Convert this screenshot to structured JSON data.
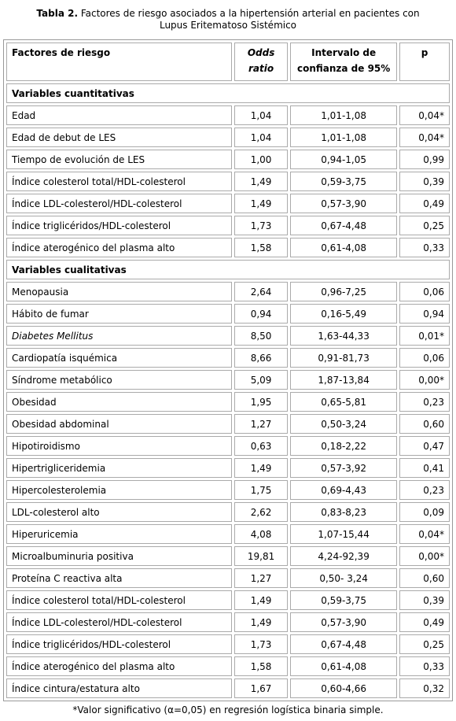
{
  "title": {
    "label": "Tabla 2.",
    "text": "Factores de riesgo asociados a la hipertensión arterial en pacientes con Lupus Eritematoso Sistémico"
  },
  "header": [
    "Factores de riesgo",
    "Odds ratio",
    "Intervalo de confianza de 95%",
    "p"
  ],
  "sections": [
    {
      "title": "Variables cuantitativas",
      "rows": [
        [
          "Edad",
          "1,04",
          "1,01-1,08",
          "0,04*"
        ],
        [
          "Edad de debut de LES",
          "1,04",
          "1,01-1,08",
          "0,04*"
        ],
        [
          "Tiempo de evolución de LES",
          "1,00",
          "0,94-1,05",
          "0,99"
        ],
        [
          "Índice colesterol total/HDL-colesterol",
          "1,49",
          "0,59-3,75",
          "0,39"
        ],
        [
          "Índice LDL-colesterol/HDL-colesterol",
          "1,49",
          "0,57-3,90",
          "0,49"
        ],
        [
          "Índice triglicéridos/HDL-colesterol",
          "1,73",
          "0,67-4,48",
          "0,25"
        ],
        [
          "Índice aterogénico del plasma alto",
          "1,58",
          "0,61-4,08",
          "0,33"
        ]
      ]
    },
    {
      "title": "Variables cualitativas",
      "rows": [
        [
          "Menopausia",
          "2,64",
          "0,96-7,25",
          "0,06"
        ],
        [
          "Hábito de fumar",
          "0,94",
          "0,16-5,49",
          "0,94"
        ],
        [
          "Diabetes Mellitus",
          "8,50",
          "1,63-44,33",
          "0,01*"
        ],
        [
          "Cardiopatía isquémica",
          "8,66",
          "0,91-81,73",
          "0,06"
        ],
        [
          "Síndrome metabólico",
          "5,09",
          "1,87-13,84",
          "0,00*"
        ],
        [
          "Obesidad",
          "1,95",
          "0,65-5,81",
          "0,23"
        ],
        [
          "Obesidad abdominal",
          "1,27",
          "0,50-3,24",
          "0,60"
        ],
        [
          "Hipotiroidismo",
          "0,63",
          "0,18-2,22",
          "0,47"
        ],
        [
          "Hipertrigliceridemia",
          "1,49",
          "0,57-3,92",
          "0,41"
        ],
        [
          "Hipercolesterolemia",
          "1,75",
          "0,69-4,43",
          "0,23"
        ],
        [
          "LDL-colesterol alto",
          "2,62",
          "0,83-8,23",
          "0,09"
        ],
        [
          "Hiperuricemia",
          "4,08",
          "1,07-15,44",
          "0,04*"
        ],
        [
          "Microalbuminuria positiva",
          "19,81",
          "4,24-92,39",
          "0,00*"
        ],
        [
          "Proteína C reactiva alta",
          "1,27",
          "0,50- 3,24",
          "0,60"
        ],
        [
          "Índice colesterol total/HDL-colesterol",
          "1,49",
          "0,59-3,75",
          "0,39"
        ],
        [
          "Índice LDL-colesterol/HDL-colesterol",
          "1,49",
          "0,57-3,90",
          "0,49"
        ],
        [
          "Índice triglicéridos/HDL-colesterol",
          "1,73",
          "0,67-4,48",
          "0,25"
        ],
        [
          "Índice aterogénico del plasma alto",
          "1,58",
          "0,61-4,08",
          "0,33"
        ],
        [
          "Índice cintura/estatura alto",
          "1,67",
          "0,60-4,66",
          "0,32"
        ]
      ]
    }
  ],
  "footnote": "*Valor significativo (α=0,05) en regresión logística binaria simple."
}
